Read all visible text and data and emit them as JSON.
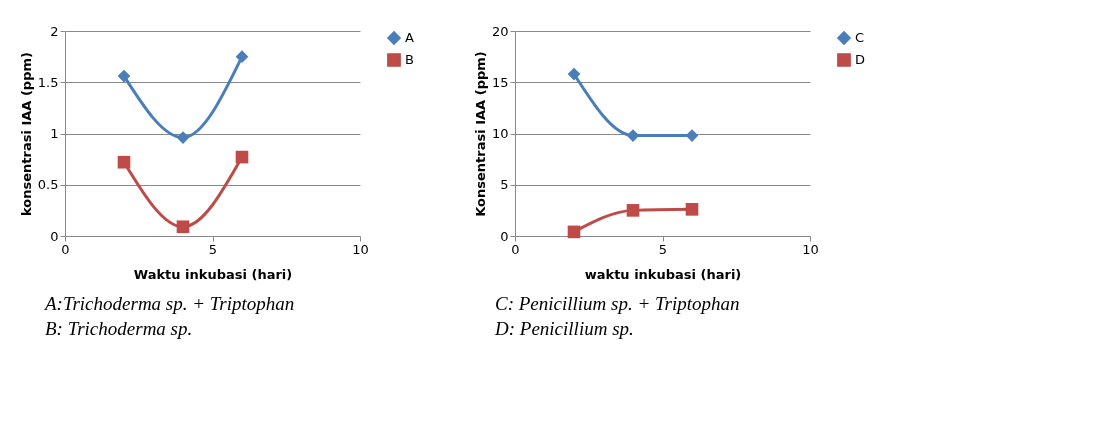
{
  "chart_data": [
    {
      "type": "line",
      "xlabel": "Waktu inkubasi (hari)",
      "ylabel": "konsentrasi IAA (ppm)",
      "x": [
        2,
        4,
        6
      ],
      "series": [
        {
          "name": "A",
          "color": "#4a7ebb",
          "marker": "diamond",
          "values": [
            1.56,
            0.96,
            1.75
          ]
        },
        {
          "name": "B",
          "color": "#be4b48",
          "marker": "square",
          "values": [
            0.72,
            0.09,
            0.77
          ]
        }
      ],
      "xlim": [
        0,
        10
      ],
      "xticks": [
        0,
        5,
        10
      ],
      "ylim": [
        0,
        2
      ],
      "yticks": [
        0,
        0.5,
        1,
        1.5,
        2
      ],
      "grid": "y",
      "legend": "right",
      "annotations": [
        "A:Trichoderma sp. + Triptophan",
        "B: Trichoderma sp."
      ]
    },
    {
      "type": "line",
      "xlabel": "waktu inkubasi (hari)",
      "ylabel": "Konsentrasi IAA (ppm)",
      "x": [
        2,
        4,
        6
      ],
      "series": [
        {
          "name": "C",
          "color": "#4a7ebb",
          "marker": "diamond",
          "values": [
            15.8,
            9.8,
            9.8
          ]
        },
        {
          "name": "D",
          "color": "#be4b48",
          "marker": "square",
          "values": [
            0.4,
            2.5,
            2.6
          ]
        }
      ],
      "xlim": [
        0,
        10
      ],
      "xticks": [
        0,
        5,
        10
      ],
      "ylim": [
        0,
        20
      ],
      "yticks": [
        0,
        5,
        10,
        15,
        20
      ],
      "grid": "y",
      "legend": "right",
      "annotations": [
        "C: Penicillium sp. + Triptophan",
        "D: Penicillium sp."
      ]
    }
  ]
}
